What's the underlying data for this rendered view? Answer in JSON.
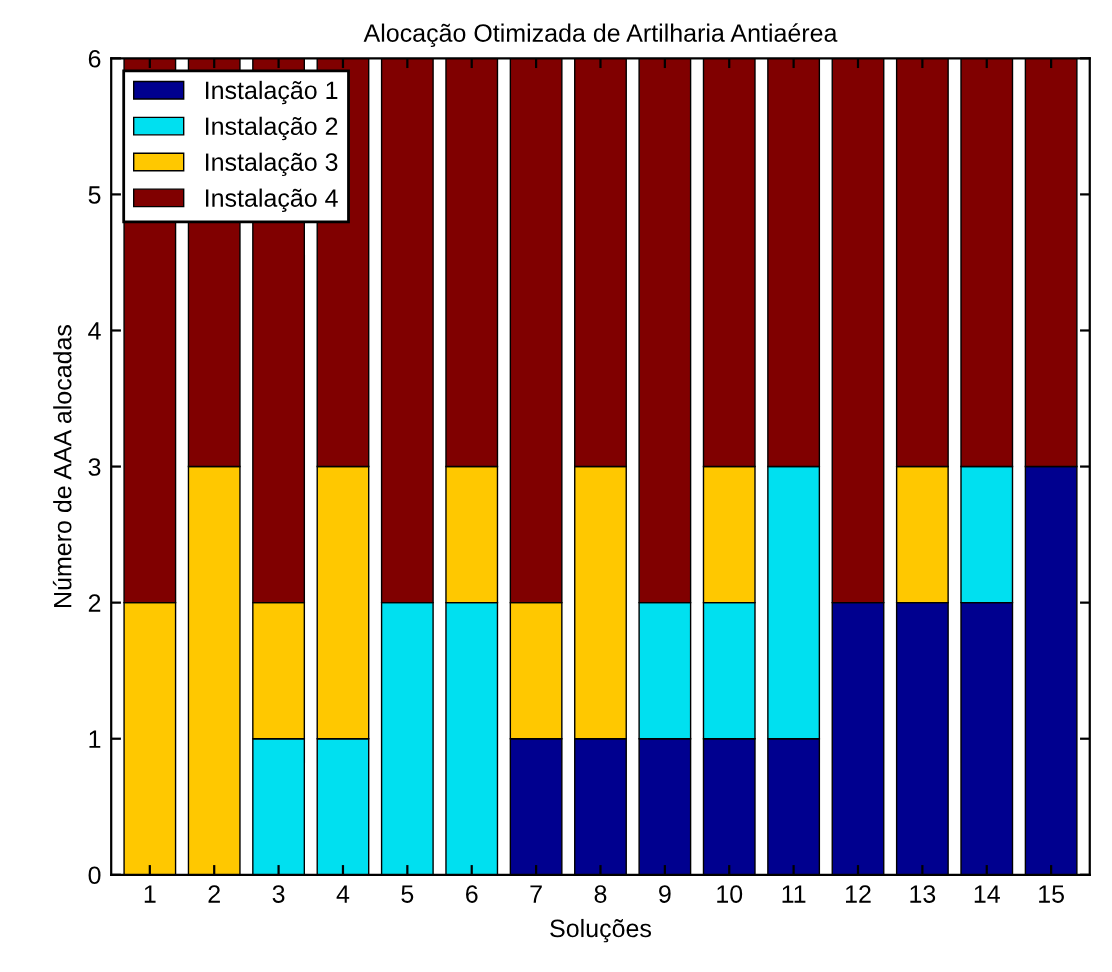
{
  "chart_data": {
    "type": "bar",
    "stacked": true,
    "title": "Alocação Otimizada de Artilharia Antiaérea",
    "xlabel": "Soluções",
    "ylabel": "Número de AAA alocadas",
    "categories": [
      "1",
      "2",
      "3",
      "4",
      "5",
      "6",
      "7",
      "8",
      "9",
      "10",
      "11",
      "12",
      "13",
      "14",
      "15"
    ],
    "series": [
      {
        "name": "Instalação 1",
        "color": "#00008f",
        "values": [
          0,
          0,
          0,
          0,
          0,
          0,
          1,
          1,
          1,
          1,
          1,
          2,
          2,
          2,
          3
        ]
      },
      {
        "name": "Instalação 2",
        "color": "#00e0f0",
        "values": [
          0,
          0,
          1,
          1,
          2,
          2,
          0,
          0,
          1,
          1,
          2,
          0,
          0,
          1,
          0
        ]
      },
      {
        "name": "Instalação 3",
        "color": "#ffc800",
        "values": [
          2,
          3,
          1,
          2,
          0,
          1,
          1,
          2,
          0,
          1,
          0,
          0,
          1,
          0,
          0
        ]
      },
      {
        "name": "Instalação 4",
        "color": "#800000",
        "values": [
          4,
          3,
          4,
          3,
          4,
          3,
          4,
          3,
          4,
          3,
          3,
          4,
          3,
          3,
          3
        ]
      }
    ],
    "ylim": [
      0,
      6
    ],
    "yticks": [
      0,
      1,
      2,
      3,
      4,
      5,
      6
    ],
    "legend": "top left",
    "grid": false
  }
}
